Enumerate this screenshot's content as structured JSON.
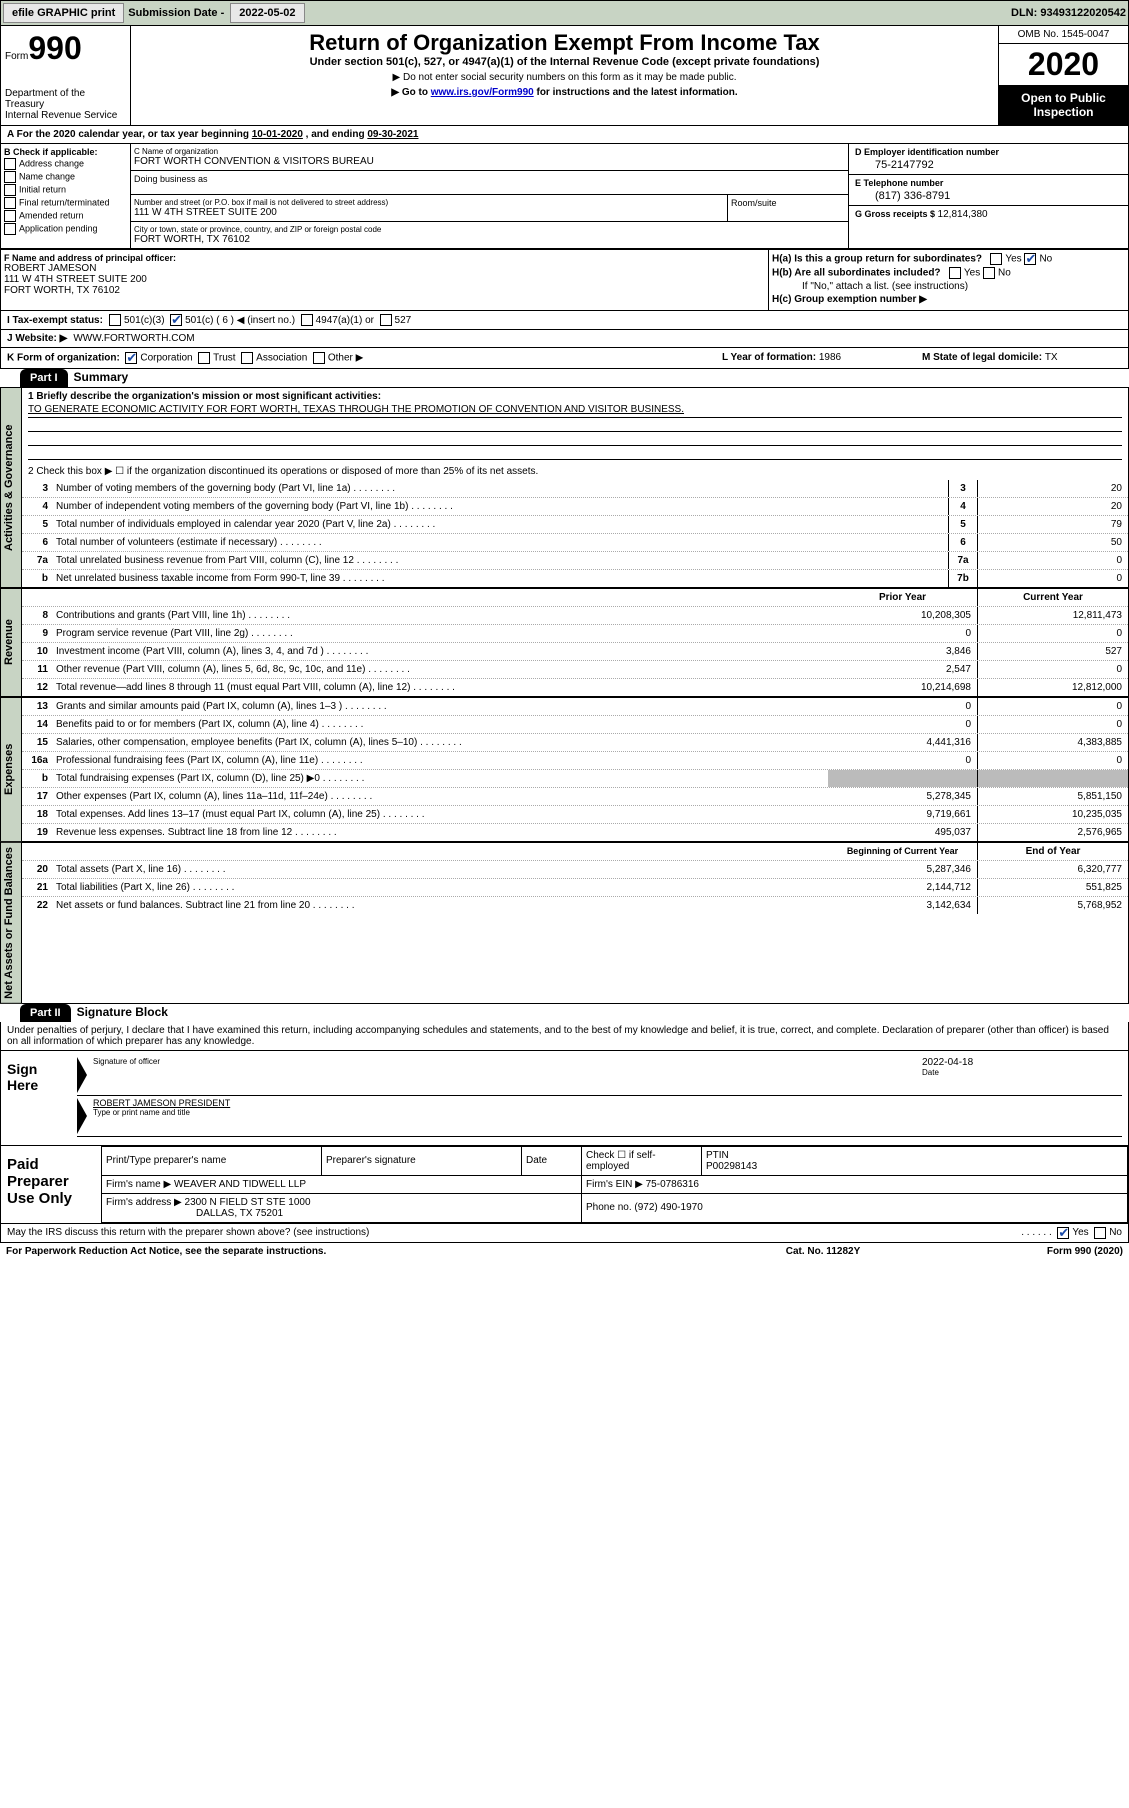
{
  "topbar": {
    "efile": "efile GRAPHIC print",
    "subdate_label": "Submission Date - ",
    "subdate": "2022-05-02",
    "dln_label": "DLN: ",
    "dln": "93493122020542"
  },
  "header": {
    "form_label": "Form",
    "form_no": "990",
    "dept": "Department of the Treasury\nInternal Revenue Service",
    "title": "Return of Organization Exempt From Income Tax",
    "subtitle": "Under section 501(c), 527, or 4947(a)(1) of the Internal Revenue Code (except private foundations)",
    "note1": "▶ Do not enter social security numbers on this form as it may be made public.",
    "note2_pre": "▶ Go to ",
    "note2_link": "www.irs.gov/Form990",
    "note2_post": " for instructions and the latest information.",
    "omb": "OMB No. 1545-0047",
    "year": "2020",
    "inspection": "Open to Public Inspection"
  },
  "lineA": {
    "pre": "A For the 2020 calendar year, or tax year beginning ",
    "begin": "10-01-2020",
    "mid": " , and ending ",
    "end": "09-30-2021"
  },
  "blockB": {
    "label": "B Check if applicable:",
    "opts": [
      "Address change",
      "Name change",
      "Initial return",
      "Final return/terminated",
      "Amended return",
      "Application pending"
    ]
  },
  "blockC": {
    "name_label": "C Name of organization",
    "name": "FORT WORTH CONVENTION & VISITORS BUREAU",
    "dba_label": "Doing business as",
    "addr_label": "Number and street (or P.O. box if mail is not delivered to street address)",
    "addr": "111 W 4TH STREET SUITE 200",
    "room_label": "Room/suite",
    "city_label": "City or town, state or province, country, and ZIP or foreign postal code",
    "city": "FORT WORTH, TX  76102"
  },
  "blockD": {
    "label": "D Employer identification number",
    "val": "75-2147792"
  },
  "blockE": {
    "label": "E Telephone number",
    "val": "(817) 336-8791"
  },
  "blockG": {
    "label": "G Gross receipts $ ",
    "val": "12,814,380"
  },
  "blockF": {
    "label": "F Name and address of principal officer:",
    "name": "ROBERT JAMESON",
    "addr1": "111 W 4TH STREET SUITE 200",
    "addr2": "FORT WORTH, TX  76102"
  },
  "blockH": {
    "ha": "H(a)  Is this a group return for subordinates?",
    "hb": "H(b)  Are all subordinates included?",
    "hb_note": "If \"No,\" attach a list. (see instructions)",
    "hc": "H(c)  Group exemption number ▶"
  },
  "lineI": {
    "label": "I  Tax-exempt status:",
    "opt1": "501(c)(3)",
    "opt2": "501(c) ( 6 ) ◀ (insert no.)",
    "opt3": "4947(a)(1) or",
    "opt4": "527"
  },
  "lineJ": {
    "label": "J  Website: ▶",
    "val": "WWW.FORTWORTH.COM"
  },
  "lineK": {
    "label": "K Form of organization:",
    "opts": [
      "Corporation",
      "Trust",
      "Association",
      "Other ▶"
    ],
    "l_label": "L Year of formation: ",
    "l_val": "1986",
    "m_label": "M State of legal domicile: ",
    "m_val": "TX"
  },
  "part1": {
    "header": "Part I",
    "title": "Summary"
  },
  "mission": {
    "q1": "1   Briefly describe the organization's mission or most significant activities:",
    "text": "TO GENERATE ECONOMIC ACTIVITY FOR FORT WORTH, TEXAS THROUGH THE PROMOTION OF CONVENTION AND VISITOR BUSINESS.",
    "q2": "2   Check this box ▶ ☐  if the organization discontinued its operations or disposed of more than 25% of its net assets."
  },
  "gov_rows": [
    {
      "n": "3",
      "d": "Number of voting members of the governing body (Part VI, line 1a)",
      "r": "3",
      "v": "20"
    },
    {
      "n": "4",
      "d": "Number of independent voting members of the governing body (Part VI, line 1b)",
      "r": "4",
      "v": "20"
    },
    {
      "n": "5",
      "d": "Total number of individuals employed in calendar year 2020 (Part V, line 2a)",
      "r": "5",
      "v": "79"
    },
    {
      "n": "6",
      "d": "Total number of volunteers (estimate if necessary)",
      "r": "6",
      "v": "50"
    },
    {
      "n": "7a",
      "d": "Total unrelated business revenue from Part VIII, column (C), line 12",
      "r": "7a",
      "v": "0"
    },
    {
      "n": "b",
      "d": "Net unrelated business taxable income from Form 990-T, line 39",
      "r": "7b",
      "v": "0"
    }
  ],
  "rev_head": {
    "c1": "Prior Year",
    "c2": "Current Year"
  },
  "rev_rows": [
    {
      "n": "8",
      "d": "Contributions and grants (Part VIII, line 1h)",
      "v1": "10,208,305",
      "v2": "12,811,473"
    },
    {
      "n": "9",
      "d": "Program service revenue (Part VIII, line 2g)",
      "v1": "0",
      "v2": "0"
    },
    {
      "n": "10",
      "d": "Investment income (Part VIII, column (A), lines 3, 4, and 7d )",
      "v1": "3,846",
      "v2": "527"
    },
    {
      "n": "11",
      "d": "Other revenue (Part VIII, column (A), lines 5, 6d, 8c, 9c, 10c, and 11e)",
      "v1": "2,547",
      "v2": "0"
    },
    {
      "n": "12",
      "d": "Total revenue—add lines 8 through 11 (must equal Part VIII, column (A), line 12)",
      "v1": "10,214,698",
      "v2": "12,812,000"
    }
  ],
  "exp_rows": [
    {
      "n": "13",
      "d": "Grants and similar amounts paid (Part IX, column (A), lines 1–3 )",
      "v1": "0",
      "v2": "0"
    },
    {
      "n": "14",
      "d": "Benefits paid to or for members (Part IX, column (A), line 4)",
      "v1": "0",
      "v2": "0"
    },
    {
      "n": "15",
      "d": "Salaries, other compensation, employee benefits (Part IX, column (A), lines 5–10)",
      "v1": "4,441,316",
      "v2": "4,383,885"
    },
    {
      "n": "16a",
      "d": "Professional fundraising fees (Part IX, column (A), line 11e)",
      "v1": "0",
      "v2": "0"
    },
    {
      "n": "b",
      "d": "Total fundraising expenses (Part IX, column (D), line 25) ▶0",
      "v1": "",
      "v2": "",
      "grey": true
    },
    {
      "n": "17",
      "d": "Other expenses (Part IX, column (A), lines 11a–11d, 11f–24e)",
      "v1": "5,278,345",
      "v2": "5,851,150"
    },
    {
      "n": "18",
      "d": "Total expenses. Add lines 13–17 (must equal Part IX, column (A), line 25)",
      "v1": "9,719,661",
      "v2": "10,235,035"
    },
    {
      "n": "19",
      "d": "Revenue less expenses. Subtract line 18 from line 12",
      "v1": "495,037",
      "v2": "2,576,965"
    }
  ],
  "na_head": {
    "c1": "Beginning of Current Year",
    "c2": "End of Year"
  },
  "na_rows": [
    {
      "n": "20",
      "d": "Total assets (Part X, line 16)",
      "v1": "5,287,346",
      "v2": "6,320,777"
    },
    {
      "n": "21",
      "d": "Total liabilities (Part X, line 26)",
      "v1": "2,144,712",
      "v2": "551,825"
    },
    {
      "n": "22",
      "d": "Net assets or fund balances. Subtract line 21 from line 20",
      "v1": "3,142,634",
      "v2": "5,768,952"
    }
  ],
  "vtabs": {
    "gov": "Activities & Governance",
    "rev": "Revenue",
    "exp": "Expenses",
    "na": "Net Assets or Fund Balances"
  },
  "part2": {
    "header": "Part II",
    "title": "Signature Block"
  },
  "sig": {
    "intro": "Under penalties of perjury, I declare that I have examined this return, including accompanying schedules and statements, and to the best of my knowledge and belief, it is true, correct, and complete. Declaration of preparer (other than officer) is based on all information of which preparer has any knowledge.",
    "here": "Sign Here",
    "sig_label": "Signature of officer",
    "date_label": "Date",
    "date": "2022-04-18",
    "name": "ROBERT JAMESON PRESIDENT",
    "name_label": "Type or print name and title"
  },
  "prep": {
    "label": "Paid Preparer Use Only",
    "h1": "Print/Type preparer's name",
    "h2": "Preparer's signature",
    "h3": "Date",
    "h4_pre": "Check ☐ if self-employed",
    "h5": "PTIN",
    "ptin": "P00298143",
    "firm_label": "Firm's name    ▶",
    "firm": "WEAVER AND TIDWELL LLP",
    "ein_label": "Firm's EIN ▶",
    "ein": "75-0786316",
    "addr_label": "Firm's address ▶",
    "addr1": "2300 N FIELD ST STE 1000",
    "addr2": "DALLAS, TX  75201",
    "phone_label": "Phone no. ",
    "phone": "(972) 490-1970"
  },
  "discuss": "May the IRS discuss this return with the preparer shown above? (see instructions)",
  "footer": {
    "pra": "For Paperwork Reduction Act Notice, see the separate instructions.",
    "cat": "Cat. No. 11282Y",
    "form": "Form 990 (2020)"
  },
  "colors": {
    "topbar_bg": "#c8d4c4",
    "link": "#0000cc",
    "check": "#1a4aa8"
  }
}
